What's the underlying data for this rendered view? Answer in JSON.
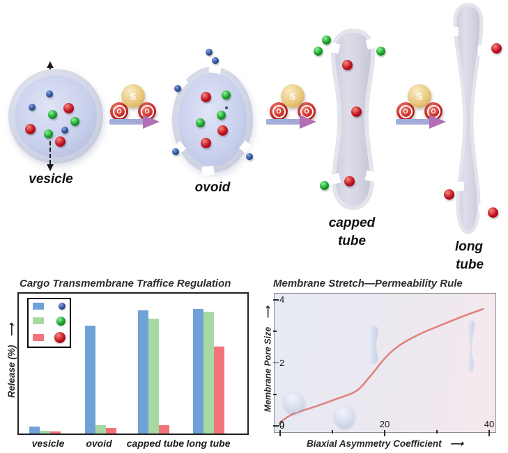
{
  "glyphs": {
    "long_arrow": "⟶"
  },
  "diagram": {
    "stage_labels": {
      "vesicle": "vesicle",
      "ovoid": "ovoid",
      "capped_line1": "capped",
      "capped_line2": "tube",
      "long_line1": "long",
      "long_line2": "tube"
    },
    "catalyst": {
      "s": "S",
      "o": "O"
    },
    "cargo_colors": {
      "small_blue": "#2b4f96",
      "medium_green": "#17a02a",
      "large_red": "#b50f1f"
    },
    "membrane_color": "#d5d8e6",
    "arrow_shaft_color": "#9fb2dd",
    "arrow_head_color": "#b26fb4"
  },
  "chart_data": [
    {
      "type": "bar",
      "title": "Cargo Transmembrane Traffice Regulation",
      "ylabel": "Release (%)",
      "xlabel": "",
      "categories": [
        "vesicle",
        "ovoid",
        "capped tube",
        "long tube"
      ],
      "series": [
        {
          "name": "small blue cargo",
          "color": "#6fa3d8",
          "values": [
            5,
            77,
            88,
            89
          ]
        },
        {
          "name": "medium green cargo",
          "color": "#a8d9a2",
          "values": [
            2,
            6,
            82,
            87
          ]
        },
        {
          "name": "large red cargo",
          "color": "#f3737c",
          "values": [
            1.5,
            4,
            6,
            62
          ]
        }
      ],
      "ylim": [
        0,
        100
      ],
      "grid": false,
      "legend_position": "upper-left",
      "legend_entries": [
        "small blue cargo sphere",
        "medium green cargo sphere",
        "large red cargo sphere"
      ]
    },
    {
      "type": "line",
      "title": "Membrane Stretch—Permeability Rule",
      "xlabel": "Biaxial Asymmetry Coefficient",
      "ylabel": "Membrane Pore Size",
      "xlim": [
        0,
        40
      ],
      "ylim": [
        0,
        4
      ],
      "x_ticks_major": [
        0,
        20,
        40
      ],
      "x_ticks_minor": [
        10,
        30
      ],
      "y_ticks_major": [
        0,
        2,
        4
      ],
      "y_ticks_minor": [
        1,
        3
      ],
      "curve_color": "#e0827e",
      "points": [
        [
          0.1,
          0.13
        ],
        [
          2.5,
          0.38
        ],
        [
          6.5,
          0.6
        ],
        [
          10.5,
          0.84
        ],
        [
          14.5,
          1.1
        ],
        [
          17.2,
          1.57
        ],
        [
          19.9,
          2.12
        ],
        [
          22.5,
          2.52
        ],
        [
          26.5,
          2.9
        ],
        [
          30.5,
          3.18
        ],
        [
          34.5,
          3.45
        ],
        [
          38.8,
          3.71
        ]
      ],
      "annotations": [
        "vesicle sphere at (2.7, 0.75)",
        "ovoid at (12.4, 0.3)",
        "capped tube at (17.7, 2.6)",
        "long tube at (36.5, 2.5)"
      ],
      "background": {
        "left": "#e7eaf4",
        "right": "#f6e9ee"
      }
    }
  ]
}
